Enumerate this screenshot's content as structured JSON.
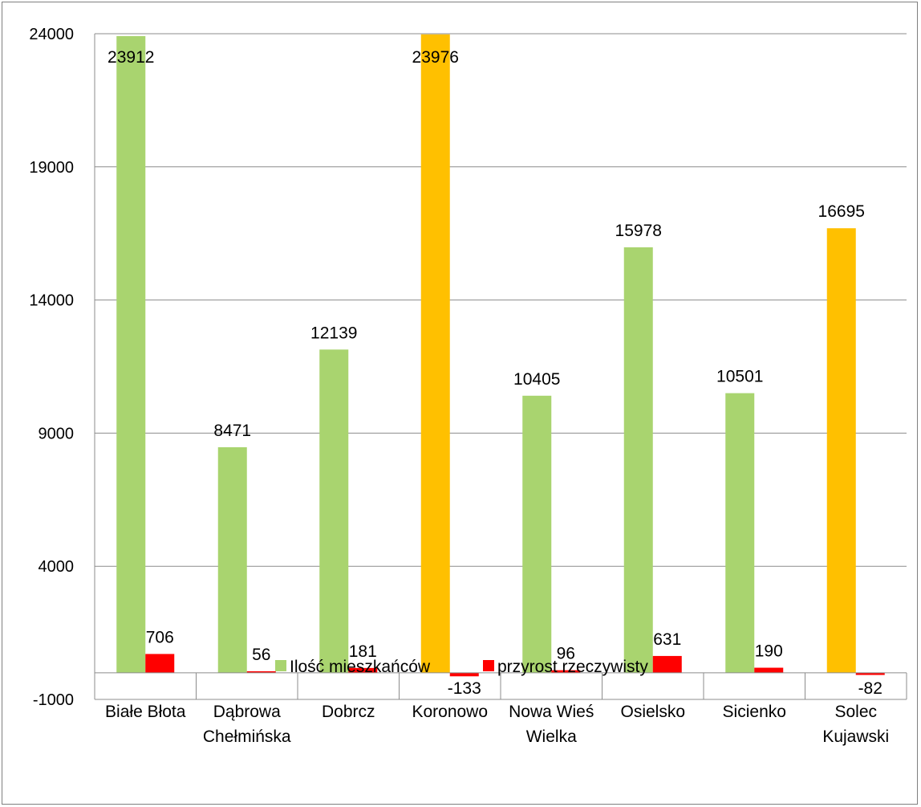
{
  "chart_data": {
    "type": "bar",
    "title": "",
    "xlabel": "",
    "ylabel": "",
    "ylim": [
      -1000,
      24000
    ],
    "yticks": [
      "24000",
      "19000",
      "14000",
      "9000",
      "4000",
      "-1000"
    ],
    "grid": true,
    "legend_position": "bottom",
    "categories": [
      [
        "Białe Błota"
      ],
      [
        "Dąbrowa",
        "Chełmińska"
      ],
      [
        "Dobrcz"
      ],
      [
        "Koronowo"
      ],
      [
        "Nowa Wieś",
        "Wielka"
      ],
      [
        "Osielsko"
      ],
      [
        "Sicienko"
      ],
      [
        "Solec",
        "Kujawski"
      ]
    ],
    "series": [
      {
        "name": "Ilość mieszkańców",
        "color": "#a9d46f",
        "highlight_color": "#ffc000",
        "highlight_indices": [
          3,
          7
        ],
        "values": [
          23912,
          8471,
          12139,
          23976,
          10405,
          15978,
          10501,
          16695
        ],
        "labels": [
          "23912",
          "8471",
          "12139",
          "23976",
          "10405",
          "15978",
          "10501",
          "16695"
        ]
      },
      {
        "name": "przyrost rzeczywisty",
        "color": "#ff0000",
        "values": [
          706,
          56,
          181,
          -133,
          96,
          631,
          190,
          -82
        ],
        "labels": [
          "706",
          "56",
          "181",
          "-133",
          "96",
          "631",
          "190",
          "-82"
        ]
      }
    ]
  }
}
